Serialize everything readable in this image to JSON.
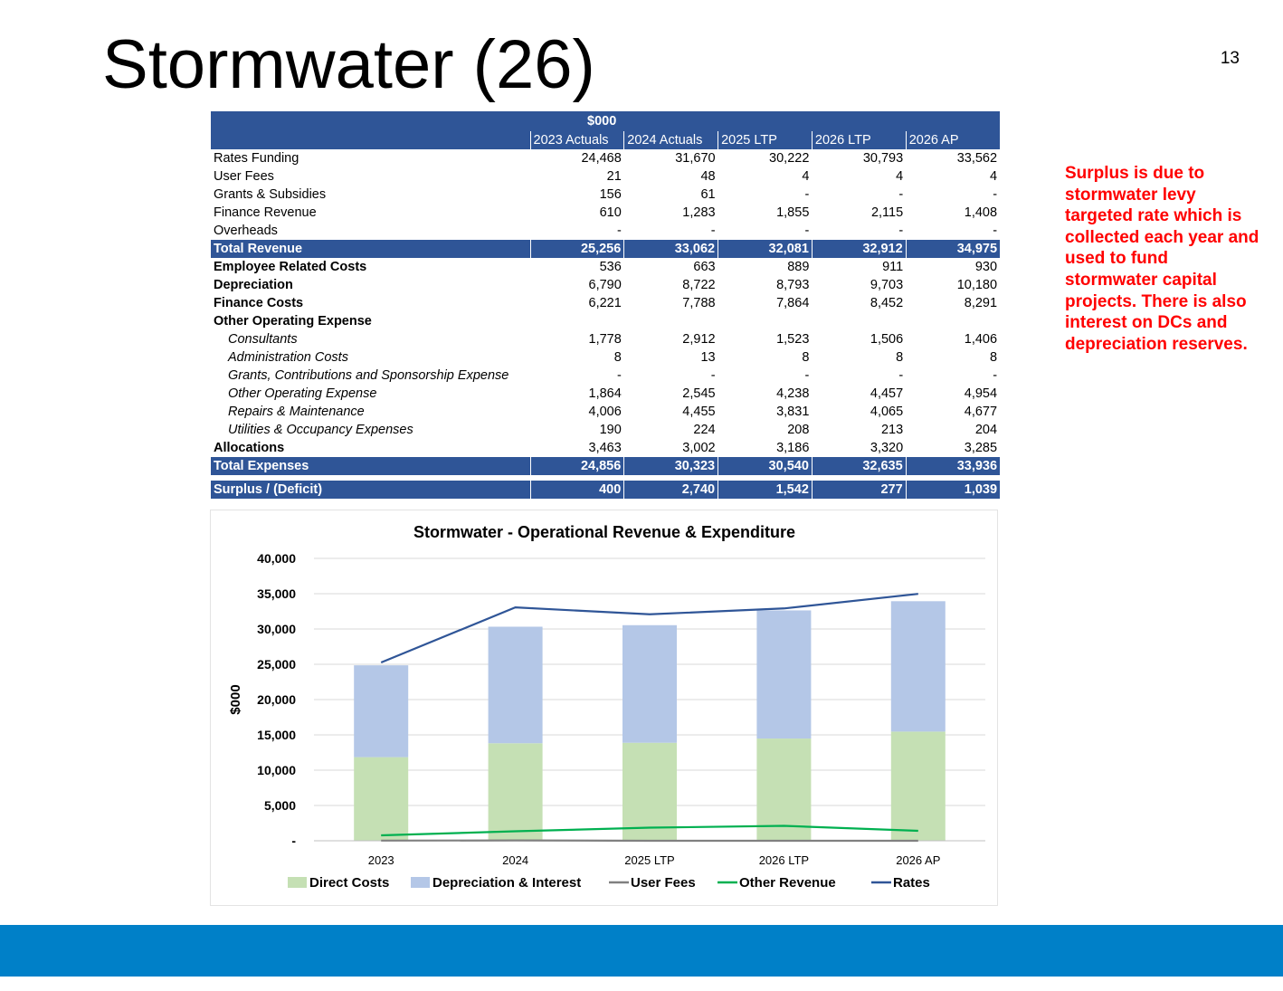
{
  "slide": {
    "title": "Stormwater (26)",
    "page_number": "13"
  },
  "table": {
    "unit_header": "$000",
    "columns": [
      "2023 Actuals",
      "2024 Actuals",
      "2025 LTP",
      "2026 LTP",
      "2026 AP"
    ],
    "rows": [
      {
        "label": "Rates Funding",
        "style": "normal",
        "values": [
          "24,468",
          "31,670",
          "30,222",
          "30,793",
          "33,562"
        ]
      },
      {
        "label": "User Fees",
        "style": "normal",
        "values": [
          "21",
          "48",
          "4",
          "4",
          "4"
        ]
      },
      {
        "label": "Grants & Subsidies",
        "style": "normal",
        "values": [
          "156",
          "61",
          "-",
          "-",
          "-"
        ]
      },
      {
        "label": "Finance Revenue",
        "style": "normal",
        "values": [
          "610",
          "1,283",
          "1,855",
          "2,115",
          "1,408"
        ]
      },
      {
        "label": "Overheads",
        "style": "normal",
        "values": [
          "-",
          "-",
          "-",
          "-",
          "-"
        ]
      },
      {
        "label": "Total Revenue",
        "style": "total",
        "values": [
          "25,256",
          "33,062",
          "32,081",
          "32,912",
          "34,975"
        ]
      },
      {
        "label": "Employee Related Costs",
        "style": "bold",
        "values": [
          "536",
          "663",
          "889",
          "911",
          "930"
        ]
      },
      {
        "label": "Depreciation",
        "style": "bold",
        "values": [
          "6,790",
          "8,722",
          "8,793",
          "9,703",
          "10,180"
        ]
      },
      {
        "label": "Finance Costs",
        "style": "bold",
        "values": [
          "6,221",
          "7,788",
          "7,864",
          "8,452",
          "8,291"
        ]
      },
      {
        "label": "Other Operating  Expense",
        "style": "bold",
        "values": [
          "",
          "",
          "",
          "",
          ""
        ]
      },
      {
        "label": "Consultants",
        "style": "italic",
        "values": [
          "1,778",
          "2,912",
          "1,523",
          "1,506",
          "1,406"
        ]
      },
      {
        "label": "Administration Costs",
        "style": "italic",
        "values": [
          "8",
          "13",
          "8",
          "8",
          "8"
        ]
      },
      {
        "label": "Grants, Contributions and Sponsorship Expense",
        "style": "italic",
        "values": [
          "-",
          "-",
          "-",
          "-",
          "-"
        ]
      },
      {
        "label": "Other Operating Expense",
        "style": "italic",
        "values": [
          "1,864",
          "2,545",
          "4,238",
          "4,457",
          "4,954"
        ]
      },
      {
        "label": "Repairs & Maintenance",
        "style": "italic",
        "values": [
          "4,006",
          "4,455",
          "3,831",
          "4,065",
          "4,677"
        ]
      },
      {
        "label": "Utilities & Occupancy Expenses",
        "style": "italic",
        "values": [
          "190",
          "224",
          "208",
          "213",
          "204"
        ]
      },
      {
        "label": "Allocations",
        "style": "bold",
        "values": [
          "3,463",
          "3,002",
          "3,186",
          "3,320",
          "3,285"
        ]
      },
      {
        "label": "Total Expenses",
        "style": "total",
        "values": [
          "24,856",
          "30,323",
          "30,540",
          "32,635",
          "33,936"
        ]
      },
      {
        "label": "",
        "style": "spacer",
        "values": [
          "",
          "",
          "",
          "",
          ""
        ]
      },
      {
        "label": "Surplus / (Deficit)",
        "style": "total",
        "values": [
          "400",
          "2,740",
          "1,542",
          "277",
          "1,039"
        ]
      }
    ]
  },
  "note": "Surplus is due to stormwater levy targeted rate which is collected each year and used to fund stormwater capital projects. There is also interest on DCs and depreciation reserves.",
  "chart_data": {
    "type": "bar",
    "stacked": true,
    "title": "Stormwater - Operational Revenue & Expenditure",
    "xlabel": "",
    "ylabel": "$000",
    "categories": [
      "2023",
      "2024",
      "2025 LTP",
      "2026 LTP",
      "2026 AP"
    ],
    "ylim": [
      0,
      40000
    ],
    "yticks": [
      0,
      5000,
      10000,
      15000,
      20000,
      25000,
      30000,
      35000,
      40000
    ],
    "ytick_labels": [
      "-",
      "5,000",
      "10,000",
      "15,000",
      "20,000",
      "25,000",
      "30,000",
      "35,000",
      "40,000"
    ],
    "grid": true,
    "legend_position": "bottom",
    "series": [
      {
        "name": "Direct Costs",
        "kind": "bar",
        "color": "#c5e0b4",
        "values": [
          11845,
          13813,
          13883,
          14480,
          15465
        ]
      },
      {
        "name": "Depreciation & Interest",
        "kind": "bar",
        "color": "#b4c7e7",
        "values": [
          13011,
          16510,
          16657,
          18155,
          18471
        ]
      },
      {
        "name": "User Fees",
        "kind": "line",
        "color": "#808080",
        "values": [
          21,
          48,
          4,
          4,
          4
        ]
      },
      {
        "name": "Other Revenue",
        "kind": "line",
        "color": "#00b050",
        "values": [
          766,
          1344,
          1855,
          2115,
          1408
        ]
      },
      {
        "name": "Rates",
        "kind": "line",
        "color": "#2f5597",
        "values": [
          25256,
          33062,
          32081,
          32912,
          34975
        ]
      }
    ]
  }
}
